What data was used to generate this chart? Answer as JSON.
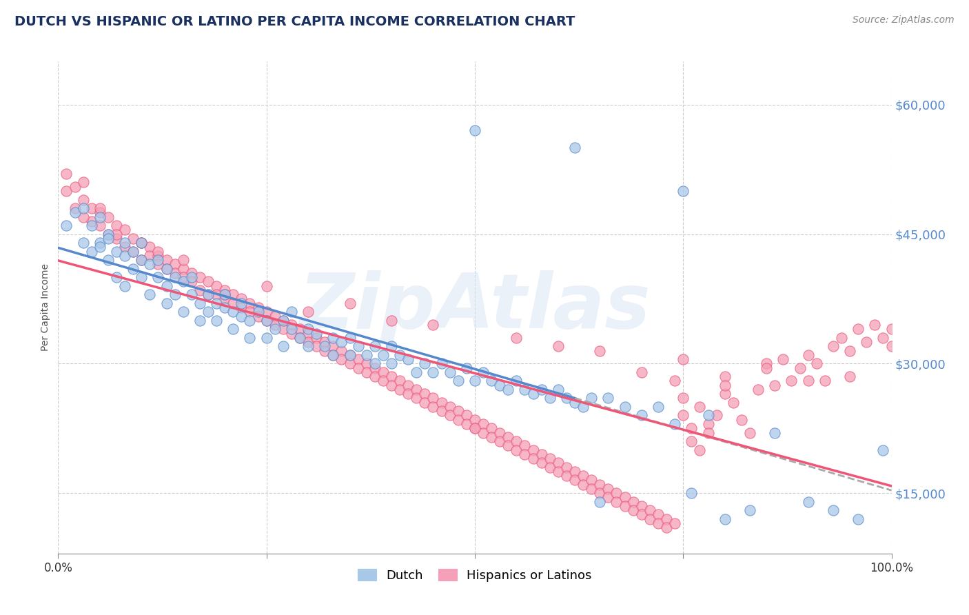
{
  "title": "DUTCH VS HISPANIC OR LATINO PER CAPITA INCOME CORRELATION CHART",
  "source": "Source: ZipAtlas.com",
  "ylabel": "Per Capita Income",
  "xmin": 0.0,
  "xmax": 1.0,
  "ymin": 8000,
  "ymax": 65000,
  "yticks": [
    15000,
    30000,
    45000,
    60000
  ],
  "ytick_labels": [
    "$15,000",
    "$30,000",
    "$45,000",
    "$60,000"
  ],
  "dutch_color": "#a8c8e8",
  "hispanic_color": "#f4a0b8",
  "dutch_line_color": "#5588cc",
  "hispanic_line_color": "#ee5577",
  "dash_color": "#aaaaaa",
  "legend_fontsize": 14,
  "title_fontsize": 14,
  "watermark": "ZipAtlas",
  "bottom_legend_dutch": "Dutch",
  "bottom_legend_hispanic": "Hispanics or Latinos",
  "dutch_scatter_x": [
    0.01,
    0.02,
    0.03,
    0.03,
    0.04,
    0.04,
    0.05,
    0.05,
    0.05,
    0.06,
    0.06,
    0.06,
    0.07,
    0.07,
    0.08,
    0.08,
    0.08,
    0.09,
    0.09,
    0.1,
    0.1,
    0.1,
    0.11,
    0.11,
    0.12,
    0.12,
    0.13,
    0.13,
    0.13,
    0.14,
    0.14,
    0.15,
    0.15,
    0.16,
    0.16,
    0.17,
    0.17,
    0.18,
    0.18,
    0.19,
    0.19,
    0.2,
    0.2,
    0.21,
    0.21,
    0.22,
    0.22,
    0.23,
    0.23,
    0.24,
    0.25,
    0.25,
    0.26,
    0.27,
    0.27,
    0.28,
    0.28,
    0.29,
    0.3,
    0.3,
    0.31,
    0.32,
    0.33,
    0.33,
    0.34,
    0.35,
    0.35,
    0.36,
    0.37,
    0.38,
    0.38,
    0.39,
    0.4,
    0.4,
    0.41,
    0.42,
    0.43,
    0.44,
    0.45,
    0.46,
    0.47,
    0.48,
    0.49,
    0.5,
    0.51,
    0.52,
    0.53,
    0.54,
    0.55,
    0.56,
    0.57,
    0.58,
    0.59,
    0.6,
    0.61,
    0.62,
    0.63,
    0.64,
    0.65,
    0.66,
    0.68,
    0.7,
    0.72,
    0.74,
    0.76,
    0.78,
    0.8,
    0.83,
    0.86,
    0.9,
    0.93,
    0.96,
    0.99,
    0.5,
    0.62,
    0.75
  ],
  "dutch_scatter_y": [
    46000,
    47500,
    44000,
    48000,
    43000,
    46000,
    44000,
    47000,
    43500,
    45000,
    42000,
    44500,
    43000,
    40000,
    42500,
    44000,
    39000,
    43000,
    41000,
    42000,
    40000,
    44000,
    41500,
    38000,
    40000,
    42000,
    39000,
    41000,
    37000,
    40000,
    38000,
    39500,
    36000,
    38000,
    40000,
    37000,
    35000,
    38000,
    36000,
    37000,
    35000,
    36500,
    38000,
    36000,
    34000,
    35500,
    37000,
    35000,
    33000,
    36000,
    35000,
    33000,
    34000,
    35000,
    32000,
    34000,
    36000,
    33000,
    34000,
    32000,
    33500,
    32000,
    33000,
    31000,
    32500,
    33000,
    31000,
    32000,
    31000,
    32000,
    30000,
    31000,
    32000,
    30000,
    31000,
    30500,
    29000,
    30000,
    29000,
    30000,
    29000,
    28000,
    29500,
    28000,
    29000,
    28000,
    27500,
    27000,
    28000,
    27000,
    26500,
    27000,
    26000,
    27000,
    26000,
    25500,
    25000,
    26000,
    14000,
    26000,
    25000,
    24000,
    25000,
    23000,
    15000,
    24000,
    12000,
    13000,
    22000,
    14000,
    13000,
    12000,
    20000,
    57000,
    55000,
    50000
  ],
  "hispanic_scatter_x": [
    0.01,
    0.01,
    0.02,
    0.02,
    0.03,
    0.03,
    0.04,
    0.04,
    0.05,
    0.05,
    0.06,
    0.06,
    0.07,
    0.07,
    0.08,
    0.08,
    0.09,
    0.09,
    0.1,
    0.1,
    0.11,
    0.11,
    0.12,
    0.12,
    0.13,
    0.13,
    0.14,
    0.14,
    0.15,
    0.15,
    0.16,
    0.16,
    0.17,
    0.17,
    0.18,
    0.18,
    0.19,
    0.19,
    0.2,
    0.2,
    0.21,
    0.21,
    0.22,
    0.22,
    0.23,
    0.23,
    0.24,
    0.24,
    0.25,
    0.25,
    0.26,
    0.26,
    0.27,
    0.27,
    0.28,
    0.28,
    0.29,
    0.29,
    0.3,
    0.3,
    0.31,
    0.31,
    0.32,
    0.32,
    0.33,
    0.33,
    0.34,
    0.34,
    0.35,
    0.35,
    0.36,
    0.36,
    0.37,
    0.37,
    0.38,
    0.38,
    0.39,
    0.39,
    0.4,
    0.4,
    0.41,
    0.41,
    0.42,
    0.42,
    0.43,
    0.43,
    0.44,
    0.44,
    0.45,
    0.45,
    0.46,
    0.46,
    0.47,
    0.47,
    0.48,
    0.48,
    0.49,
    0.49,
    0.5,
    0.5,
    0.51,
    0.51,
    0.52,
    0.52,
    0.53,
    0.53,
    0.54,
    0.54,
    0.55,
    0.55,
    0.56,
    0.56,
    0.57,
    0.57,
    0.58,
    0.58,
    0.59,
    0.59,
    0.6,
    0.6,
    0.61,
    0.61,
    0.62,
    0.62,
    0.63,
    0.63,
    0.64,
    0.64,
    0.65,
    0.65,
    0.66,
    0.66,
    0.67,
    0.67,
    0.68,
    0.68,
    0.69,
    0.69,
    0.7,
    0.7,
    0.71,
    0.71,
    0.72,
    0.72,
    0.73,
    0.73,
    0.74,
    0.74,
    0.75,
    0.75,
    0.76,
    0.76,
    0.77,
    0.77,
    0.78,
    0.78,
    0.79,
    0.8,
    0.8,
    0.81,
    0.82,
    0.83,
    0.84,
    0.85,
    0.86,
    0.87,
    0.88,
    0.89,
    0.9,
    0.91,
    0.92,
    0.93,
    0.94,
    0.95,
    0.96,
    0.97,
    0.98,
    0.99,
    1.0,
    1.0,
    0.03,
    0.07,
    0.1,
    0.15,
    0.25,
    0.35,
    0.45,
    0.55,
    0.65,
    0.75,
    0.85,
    0.95,
    0.5,
    0.3,
    0.2,
    0.4,
    0.7,
    0.8,
    0.6,
    0.9,
    0.05,
    0.12
  ],
  "hispanic_scatter_y": [
    52000,
    50000,
    50500,
    48000,
    49000,
    51000,
    48000,
    46500,
    47500,
    46000,
    47000,
    45000,
    46000,
    44500,
    45500,
    43500,
    44500,
    43000,
    44000,
    42000,
    43500,
    42500,
    42500,
    41500,
    42000,
    41000,
    41500,
    40500,
    41000,
    40000,
    40500,
    39500,
    40000,
    38500,
    39500,
    38000,
    39000,
    38000,
    38500,
    37500,
    38000,
    37000,
    37500,
    36500,
    37000,
    36000,
    36500,
    35500,
    36000,
    35000,
    35500,
    34500,
    35000,
    34000,
    34500,
    33500,
    34000,
    33000,
    33500,
    32500,
    33000,
    32000,
    32500,
    31500,
    32000,
    31000,
    31500,
    30500,
    31000,
    30000,
    30500,
    29500,
    30000,
    29000,
    29500,
    28500,
    29000,
    28000,
    28500,
    27500,
    28000,
    27000,
    27500,
    26500,
    27000,
    26000,
    26500,
    25500,
    26000,
    25000,
    25500,
    24500,
    25000,
    24000,
    24500,
    23500,
    24000,
    23000,
    23500,
    22500,
    23000,
    22000,
    22500,
    21500,
    22000,
    21000,
    21500,
    20500,
    21000,
    20000,
    20500,
    19500,
    20000,
    19000,
    19500,
    18500,
    19000,
    18000,
    18500,
    17500,
    18000,
    17000,
    17500,
    16500,
    17000,
    16000,
    16500,
    15500,
    16000,
    15000,
    15500,
    14500,
    15000,
    14000,
    14500,
    13500,
    14000,
    13000,
    13500,
    12500,
    13000,
    12000,
    12500,
    11500,
    12000,
    11000,
    11500,
    28000,
    26000,
    24000,
    22500,
    21000,
    20000,
    25000,
    23000,
    22000,
    24000,
    28500,
    26500,
    25500,
    23500,
    22000,
    27000,
    30000,
    27500,
    30500,
    28000,
    29500,
    31000,
    30000,
    28000,
    32000,
    33000,
    31500,
    34000,
    32500,
    34500,
    33000,
    34000,
    32000,
    47000,
    45000,
    44000,
    42000,
    39000,
    37000,
    34500,
    33000,
    31500,
    30500,
    29500,
    28500,
    22500,
    36000,
    38000,
    35000,
    29000,
    27500,
    32000,
    28000,
    48000,
    43000
  ]
}
